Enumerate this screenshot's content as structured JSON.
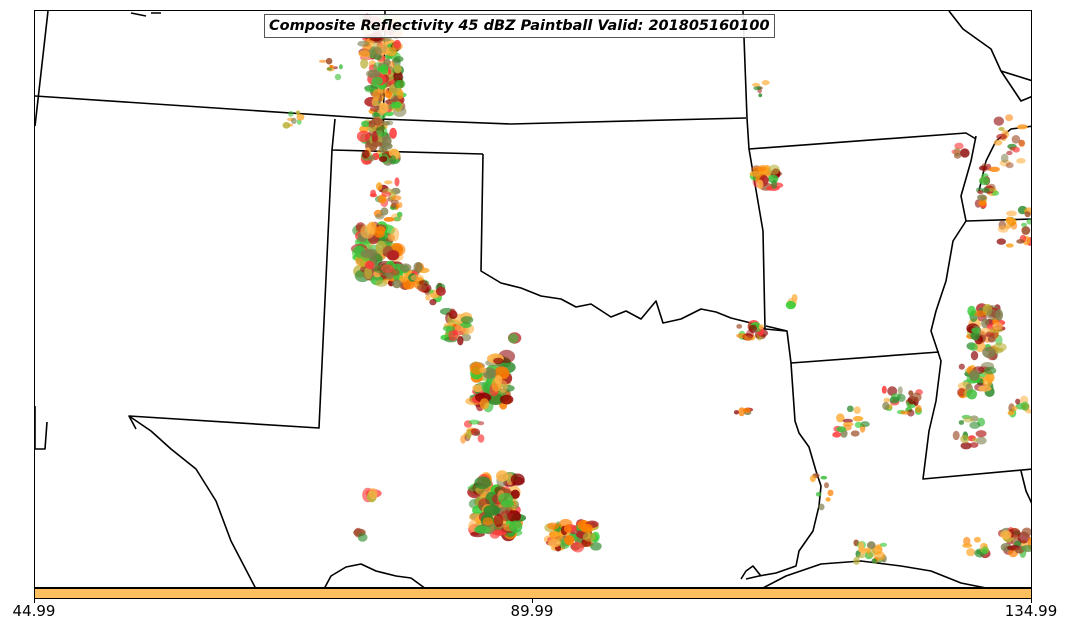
{
  "map": {
    "title": "Composite Reflectivity 45 dBZ Paintball Valid: 201805160100"
  },
  "colorbar": {
    "color": "#FFBF5F",
    "tick_labels": [
      "44.99",
      "89.99",
      "134.99"
    ]
  },
  "paint_colors": [
    "#FF3B3B",
    "#FF7F00",
    "#FFA31F",
    "#FFB347",
    "#BAB037",
    "#3DBF3D",
    "#2E8B2E",
    "#33CC33",
    "#7F7F4F",
    "#B22222",
    "#8B0000",
    "#A0522D"
  ]
}
